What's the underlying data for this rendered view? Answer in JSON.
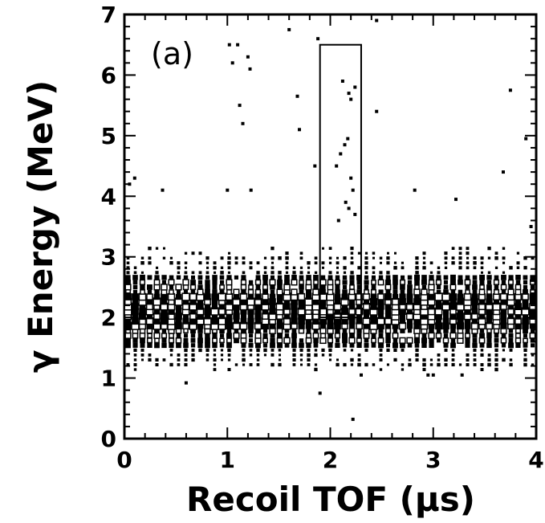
{
  "chart_data": {
    "type": "scatter",
    "panel_label": "(a)",
    "xlabel": "Recoil TOF (μs)",
    "ylabel": "γ Energy (MeV)",
    "xlim": [
      0,
      4
    ],
    "ylim": [
      0,
      7
    ],
    "xticks": [
      "0",
      "1",
      "2",
      "3",
      "4"
    ],
    "yticks": [
      "0",
      "1",
      "2",
      "3",
      "4",
      "5",
      "6",
      "7"
    ],
    "grid": false,
    "gate_box": {
      "x": [
        1.9,
        2.3
      ],
      "y": [
        2.0,
        6.5
      ]
    },
    "band": {
      "description_free": true,
      "x_range": [
        0,
        4
      ],
      "y_range": [
        1.1,
        3.2
      ],
      "peak_y": 2.1
    },
    "points": [
      [
        0.05,
        4.2
      ],
      [
        0.1,
        4.3
      ],
      [
        0.37,
        4.1
      ],
      [
        0.6,
        0.92
      ],
      [
        1.0,
        4.1
      ],
      [
        1.02,
        6.5
      ],
      [
        1.05,
        6.2
      ],
      [
        1.1,
        6.5
      ],
      [
        1.12,
        5.5
      ],
      [
        1.15,
        5.2
      ],
      [
        1.2,
        6.3
      ],
      [
        1.22,
        6.1
      ],
      [
        1.23,
        4.1
      ],
      [
        1.6,
        6.75
      ],
      [
        1.68,
        5.65
      ],
      [
        1.7,
        5.1
      ],
      [
        1.85,
        4.5
      ],
      [
        1.88,
        6.6
      ],
      [
        1.9,
        0.75
      ],
      [
        2.06,
        4.5
      ],
      [
        2.12,
        5.9
      ],
      [
        2.18,
        5.7
      ],
      [
        2.2,
        5.6
      ],
      [
        2.24,
        5.8
      ],
      [
        2.1,
        4.7
      ],
      [
        2.14,
        4.85
      ],
      [
        2.17,
        4.95
      ],
      [
        2.2,
        4.3
      ],
      [
        2.22,
        4.1
      ],
      [
        2.15,
        3.9
      ],
      [
        2.18,
        3.8
      ],
      [
        2.08,
        3.6
      ],
      [
        2.24,
        3.7
      ],
      [
        2.3,
        1.05
      ],
      [
        2.22,
        0.32
      ],
      [
        2.45,
        6.9
      ],
      [
        2.45,
        5.4
      ],
      [
        2.82,
        4.1
      ],
      [
        2.95,
        1.05
      ],
      [
        3.0,
        1.05
      ],
      [
        3.22,
        3.95
      ],
      [
        3.28,
        1.05
      ],
      [
        3.68,
        4.4
      ],
      [
        3.75,
        5.75
      ],
      [
        3.9,
        4.95
      ],
      [
        3.95,
        3.5
      ]
    ]
  }
}
